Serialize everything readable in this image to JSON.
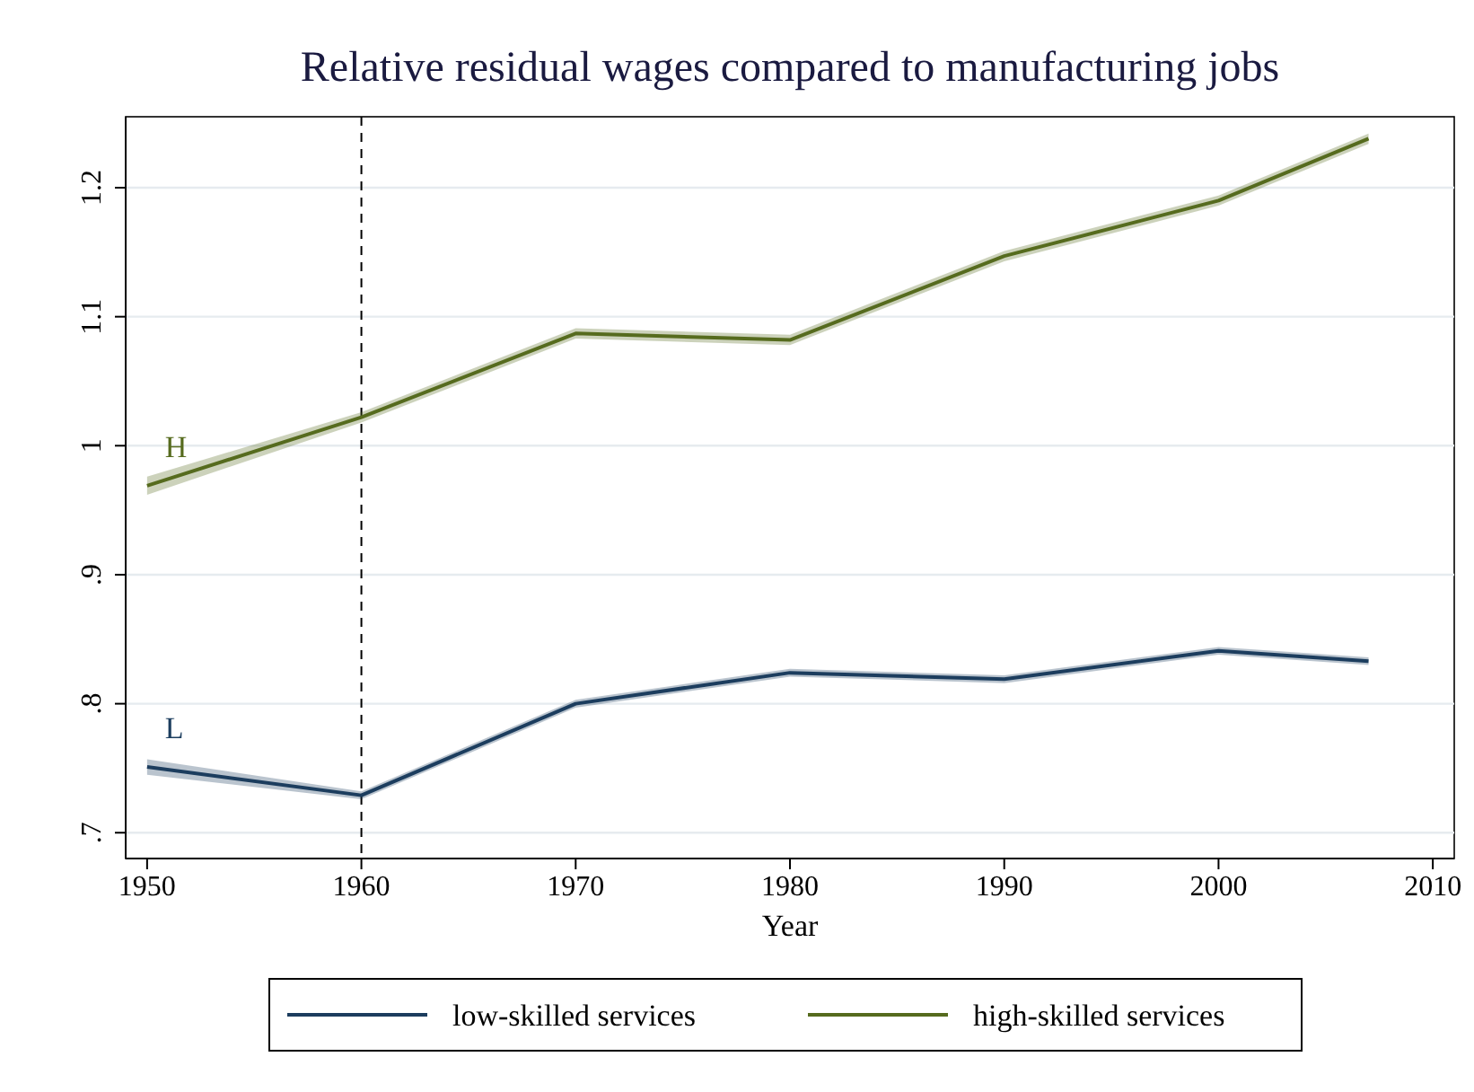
{
  "chart_data": {
    "type": "line",
    "title": "Relative residual wages compared to manufacturing jobs",
    "xlabel": "Year",
    "x": [
      1950,
      1960,
      1970,
      1980,
      1990,
      2000,
      2007
    ],
    "series": [
      {
        "name": "low-skilled services",
        "color": "#1c3d5e",
        "values": [
          0.751,
          0.729,
          0.8,
          0.824,
          0.819,
          0.841,
          0.833
        ],
        "lower": [
          0.745,
          0.726,
          0.797,
          0.821,
          0.816,
          0.838,
          0.83
        ],
        "upper": [
          0.757,
          0.732,
          0.803,
          0.827,
          0.822,
          0.844,
          0.836
        ]
      },
      {
        "name": "high-skilled services",
        "color": "#566b1e",
        "values": [
          0.969,
          1.022,
          1.087,
          1.082,
          1.147,
          1.19,
          1.238
        ],
        "lower": [
          0.962,
          1.018,
          1.083,
          1.078,
          1.143,
          1.186,
          1.234
        ],
        "upper": [
          0.976,
          1.026,
          1.091,
          1.086,
          1.151,
          1.194,
          1.242
        ]
      }
    ],
    "xlim": [
      1949,
      2011
    ],
    "xticks": [
      1950,
      1960,
      1970,
      1980,
      1990,
      2000,
      2010
    ],
    "ylim": [
      0.68,
      1.255
    ],
    "yticks": [
      {
        "value": 0.7,
        "label": ".7"
      },
      {
        "value": 0.8,
        "label": ".8"
      },
      {
        "value": 0.9,
        "label": ".9"
      },
      {
        "value": 1,
        "label": "1"
      },
      {
        "value": 1.1,
        "label": "1.1"
      },
      {
        "value": 1.2,
        "label": "1.2"
      }
    ],
    "annotations": [
      "L",
      "H"
    ],
    "ref_lines": [
      {
        "axis": "x",
        "value": 1960,
        "line_style": "dashed",
        "color": "#000000"
      }
    ],
    "grid": "y",
    "legend": "bottom",
    "line_style": "solid",
    "marker": "none"
  }
}
